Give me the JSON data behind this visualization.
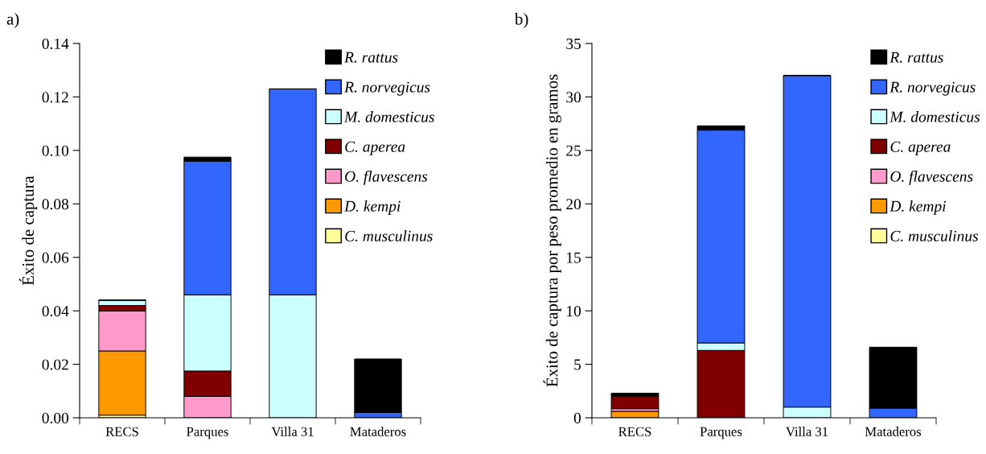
{
  "chart_data": [
    {
      "type": "bar",
      "title": "a)",
      "ylabel": "Éxito de captura",
      "stacked": true,
      "legend": "top right",
      "grid": false,
      "categories": [
        "RECS",
        "Parques",
        "Villa 31",
        "Mataderos"
      ],
      "ylim": [
        0,
        0.14
      ],
      "yticks": [
        {
          "value": 0,
          "label": "0.00"
        },
        {
          "value": 0.02,
          "label": "0.02"
        },
        {
          "value": 0.04,
          "label": "0.04"
        },
        {
          "value": 0.06,
          "label": "0.06"
        },
        {
          "value": 0.08,
          "label": "0.08"
        },
        {
          "value": 0.1,
          "label": "0.10"
        },
        {
          "value": 0.12,
          "label": "0.12"
        },
        {
          "value": 0.14,
          "label": "0.14"
        }
      ],
      "series": [
        {
          "name": "C. musculinus",
          "color": "#ffff99",
          "values": [
            0.001,
            0,
            0,
            0
          ]
        },
        {
          "name": "D. kempi",
          "color": "#ff9900",
          "values": [
            0.024,
            0,
            0,
            0
          ]
        },
        {
          "name": "O. flavescens",
          "color": "#ff99cc",
          "values": [
            0.015,
            0.008,
            0,
            0
          ]
        },
        {
          "name": "C. aperea",
          "color": "#800000",
          "values": [
            0.002,
            0.0095,
            0,
            0
          ]
        },
        {
          "name": "M. domesticus",
          "color": "#ccffff",
          "values": [
            0.002,
            0.0285,
            0.046,
            0
          ]
        },
        {
          "name": "R. norvegicus",
          "color": "#3366ff",
          "values": [
            0,
            0.05,
            0.077,
            0.002
          ]
        },
        {
          "name": "R. rattus",
          "color": "#000000",
          "values": [
            0,
            0.0015,
            0,
            0.02
          ]
        }
      ]
    },
    {
      "type": "bar",
      "title": "b)",
      "ylabel": "Éxito de captura por peso promedio en gramos",
      "stacked": true,
      "legend": "top right",
      "grid": false,
      "categories": [
        "RECS",
        "Parques",
        "Villa 31",
        "Mataderos"
      ],
      "ylim": [
        0,
        35
      ],
      "yticks": [
        0,
        5,
        10,
        15,
        20,
        25,
        30,
        35
      ],
      "series": [
        {
          "name": "C. musculinus",
          "color": "#ffff99",
          "values": [
            null,
            0,
            0,
            0
          ]
        },
        {
          "name": "D. kempi",
          "color": "#ff9900",
          "values": [
            0.6,
            0,
            0,
            0
          ]
        },
        {
          "name": "O. flavescens",
          "color": "#ff99cc",
          "values": [
            0.25,
            0,
            0,
            0
          ]
        },
        {
          "name": "C. aperea",
          "color": "#800000",
          "values": [
            1.2,
            6.3,
            0,
            0
          ]
        },
        {
          "name": "M. domesticus",
          "color": "#ccffff",
          "values": [
            0,
            0.7,
            1.0,
            0
          ]
        },
        {
          "name": "R. norvegicus",
          "color": "#3366ff",
          "values": [
            0,
            19.9,
            31,
            0.9
          ]
        },
        {
          "name": "R. rattus",
          "color": "#000000",
          "values": [
            0.25,
            0.4,
            0,
            5.7
          ]
        }
      ]
    }
  ]
}
